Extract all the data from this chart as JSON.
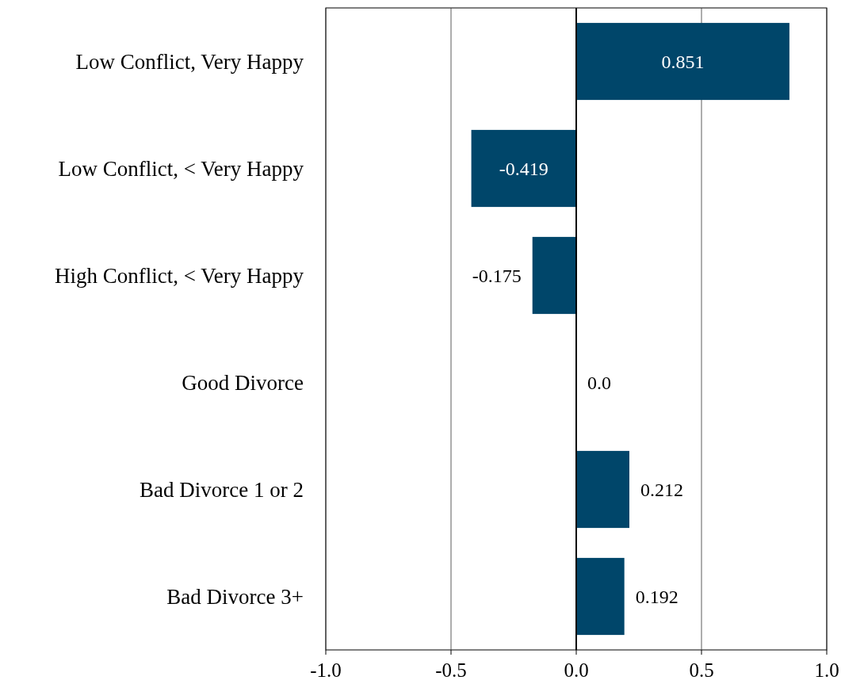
{
  "chart_data": {
    "type": "bar",
    "orientation": "horizontal",
    "categories": [
      "Low Conflict, Very Happy",
      "Low Conflict, < Very Happy",
      "High Conflict, < Very Happy",
      "Good Divorce",
      "Bad Divorce 1 or 2",
      "Bad Divorce 3+"
    ],
    "values": [
      0.851,
      -0.419,
      -0.175,
      0,
      0.212,
      0.192
    ],
    "value_labels": [
      "0.851",
      "-0.419",
      "-0.175",
      "0.0",
      "0.212",
      "0.192"
    ],
    "color": "#00466a",
    "xlim": [
      -1,
      1
    ],
    "xticks": [
      {
        "value": -1,
        "label": "-1.0"
      },
      {
        "value": -0.5,
        "label": "-0.5"
      },
      {
        "value": 0,
        "label": "0.0"
      },
      {
        "value": 0.5,
        "label": "0.5"
      },
      {
        "value": 1,
        "label": "1.0"
      }
    ],
    "grid": "x",
    "ref_lines": [
      {
        "axis": "x",
        "value": 0,
        "color": "#000000"
      }
    ]
  }
}
